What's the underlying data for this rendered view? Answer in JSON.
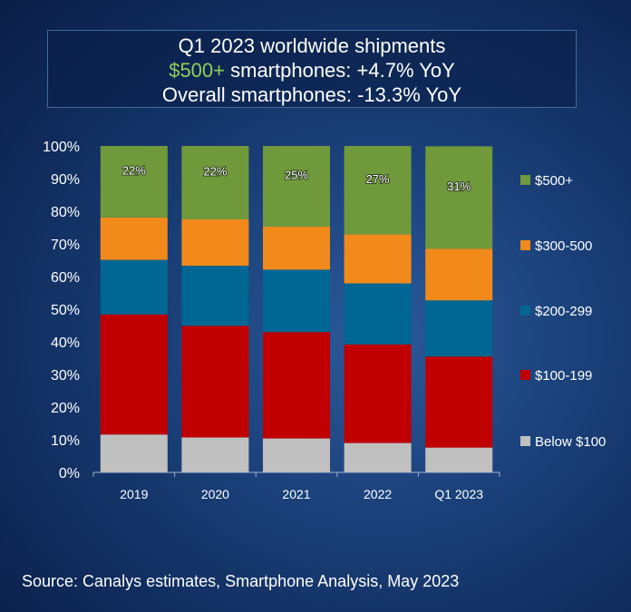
{
  "title": {
    "line1": "Q1 2023 worldwide shipments",
    "line2_highlight": "$500+",
    "line2_rest": " smartphones: +4.7% YoY",
    "line3": "Overall smartphones: -13.3% YoY"
  },
  "source": "Source: Canalys estimates, Smartphone Analysis, May 2023",
  "chart_data": {
    "type": "bar",
    "stacked": true,
    "percent": true,
    "categories": [
      "2019",
      "2020",
      "2021",
      "2022",
      "Q1 2023"
    ],
    "yticks": [
      "0%",
      "10%",
      "20%",
      "30%",
      "40%",
      "50%",
      "60%",
      "70%",
      "80%",
      "90%",
      "100%"
    ],
    "ylim": [
      0,
      100
    ],
    "legend_position": "right",
    "series": [
      {
        "name": "Below $100",
        "color": "#c0c0c0",
        "values": [
          11.6,
          10.7,
          10.4,
          9.0,
          7.6
        ]
      },
      {
        "name": "$100-199",
        "color": "#c00000",
        "values": [
          36.8,
          34.2,
          32.6,
          30.2,
          27.9
        ]
      },
      {
        "name": "$200-299",
        "color": "#006693",
        "values": [
          16.7,
          18.4,
          19.1,
          18.7,
          17.2
        ]
      },
      {
        "name": "$300-500",
        "color": "#f28a1b",
        "values": [
          13.0,
          14.2,
          13.2,
          15.0,
          15.8
        ]
      },
      {
        "name": "$500+",
        "color": "#70993c",
        "values": [
          21.9,
          22.5,
          24.7,
          27.1,
          31.4
        ]
      }
    ],
    "data_labels": [
      "22%",
      "22%",
      "25%",
      "27%",
      "31%"
    ]
  }
}
